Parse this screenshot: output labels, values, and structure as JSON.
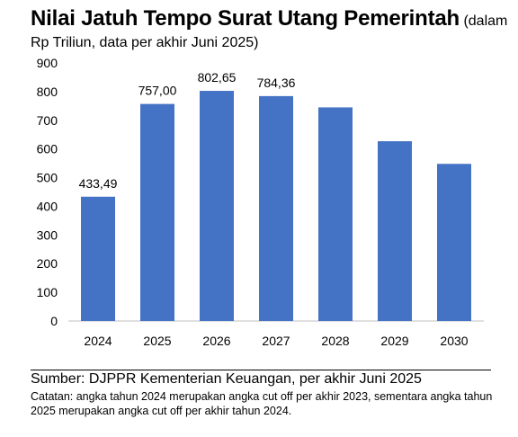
{
  "header": {
    "title_main": "Nilai Jatuh Tempo Surat Utang Pemerintah",
    "title_paren": "(dalam",
    "subtitle": "Rp Triliun, data per akhir Juni 2025)"
  },
  "chart_data": {
    "type": "bar",
    "categories": [
      "2024",
      "2025",
      "2026",
      "2027",
      "2028",
      "2029",
      "2030"
    ],
    "values": [
      433.49,
      757.0,
      802.65,
      784.36,
      745,
      627,
      548
    ],
    "data_labels": [
      "433,49",
      "757,00",
      "802,65",
      "784,36",
      null,
      null,
      null
    ],
    "yticks": [
      "0",
      "100",
      "200",
      "300",
      "400",
      "500",
      "600",
      "700",
      "800",
      "900"
    ],
    "ylim": [
      0,
      900
    ],
    "bar_color": "#4472C4",
    "grid": false,
    "legend": "none"
  },
  "footer": {
    "source": "Sumber: DJPPR Kementerian Keuangan, per akhir Juni 2025",
    "note": "Catatan: angka tahun 2024 merupakan angka cut off per akhir 2023, sementara angka tahun 2025 merupakan angka cut off per akhir tahun 2024."
  }
}
